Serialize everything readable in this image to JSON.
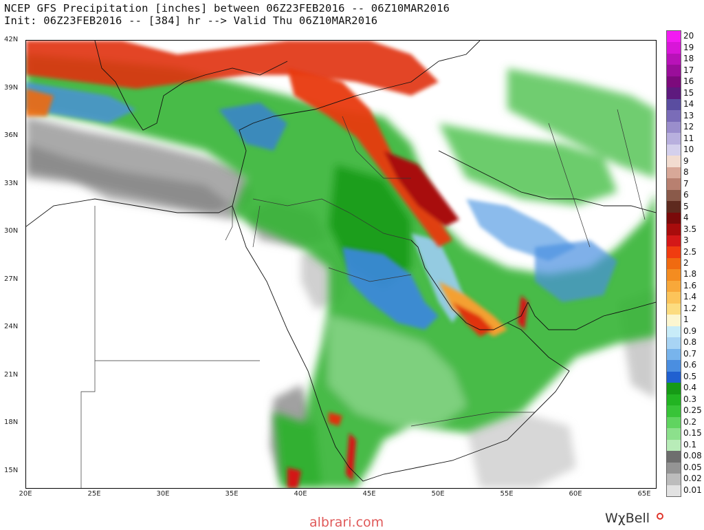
{
  "header": {
    "title_line1": "NCEP GFS Precipitation [inches] between 06Z23FEB2016 -- 06Z10MAR2016",
    "title_line2": "Init: 06Z23FEB2016 -- [384] hr --> Valid Thu 06Z10MAR2016"
  },
  "map": {
    "lat_labels": [
      "42N",
      "39N",
      "36N",
      "33N",
      "30N",
      "27N",
      "24N",
      "21N",
      "18N",
      "15N"
    ],
    "lon_labels": [
      "20E",
      "25E",
      "30E",
      "35E",
      "40E",
      "45E",
      "50E",
      "55E",
      "60E",
      "65E"
    ],
    "lat_range": [
      14,
      42
    ],
    "lon_range": [
      20,
      66
    ]
  },
  "colorbar": {
    "labels": [
      "20",
      "19",
      "18",
      "17",
      "16",
      "15",
      "14",
      "13",
      "12",
      "11",
      "10",
      "9",
      "8",
      "7",
      "6",
      "5",
      "4",
      "3.5",
      "3",
      "2.5",
      "2",
      "1.8",
      "1.6",
      "1.4",
      "1.2",
      "1",
      "0.9",
      "0.8",
      "0.7",
      "0.6",
      "0.5",
      "0.4",
      "0.3",
      "0.25",
      "0.2",
      "0.15",
      "0.1",
      "0.08",
      "0.05",
      "0.02",
      "0.01"
    ],
    "colors": [
      "#f21bf2",
      "#d816d8",
      "#b812b8",
      "#9a0e9a",
      "#7c0a7c",
      "#5e1a7e",
      "#5a4da0",
      "#7a6cb8",
      "#9a8ecc",
      "#b8b0de",
      "#d4d0ec",
      "#f2dcd0",
      "#d8a898",
      "#b88070",
      "#8a5a4a",
      "#5e2a1e",
      "#7a0a0a",
      "#a80c0c",
      "#d41818",
      "#f03c10",
      "#f06a10",
      "#f48c20",
      "#f8a83a",
      "#fcc45a",
      "#fcdc80",
      "#fcf6d0",
      "#c8ecf8",
      "#a8d4f4",
      "#78b4ec",
      "#4a8ee0",
      "#2060d0",
      "#169a16",
      "#22b422",
      "#38c438",
      "#60d460",
      "#8ce08c",
      "#b8ecb8",
      "#6e6e6e",
      "#949494",
      "#bcbcbc",
      "#e2e2e2"
    ]
  },
  "footer": {
    "source": "albrari.com",
    "brand": "WχBell"
  }
}
